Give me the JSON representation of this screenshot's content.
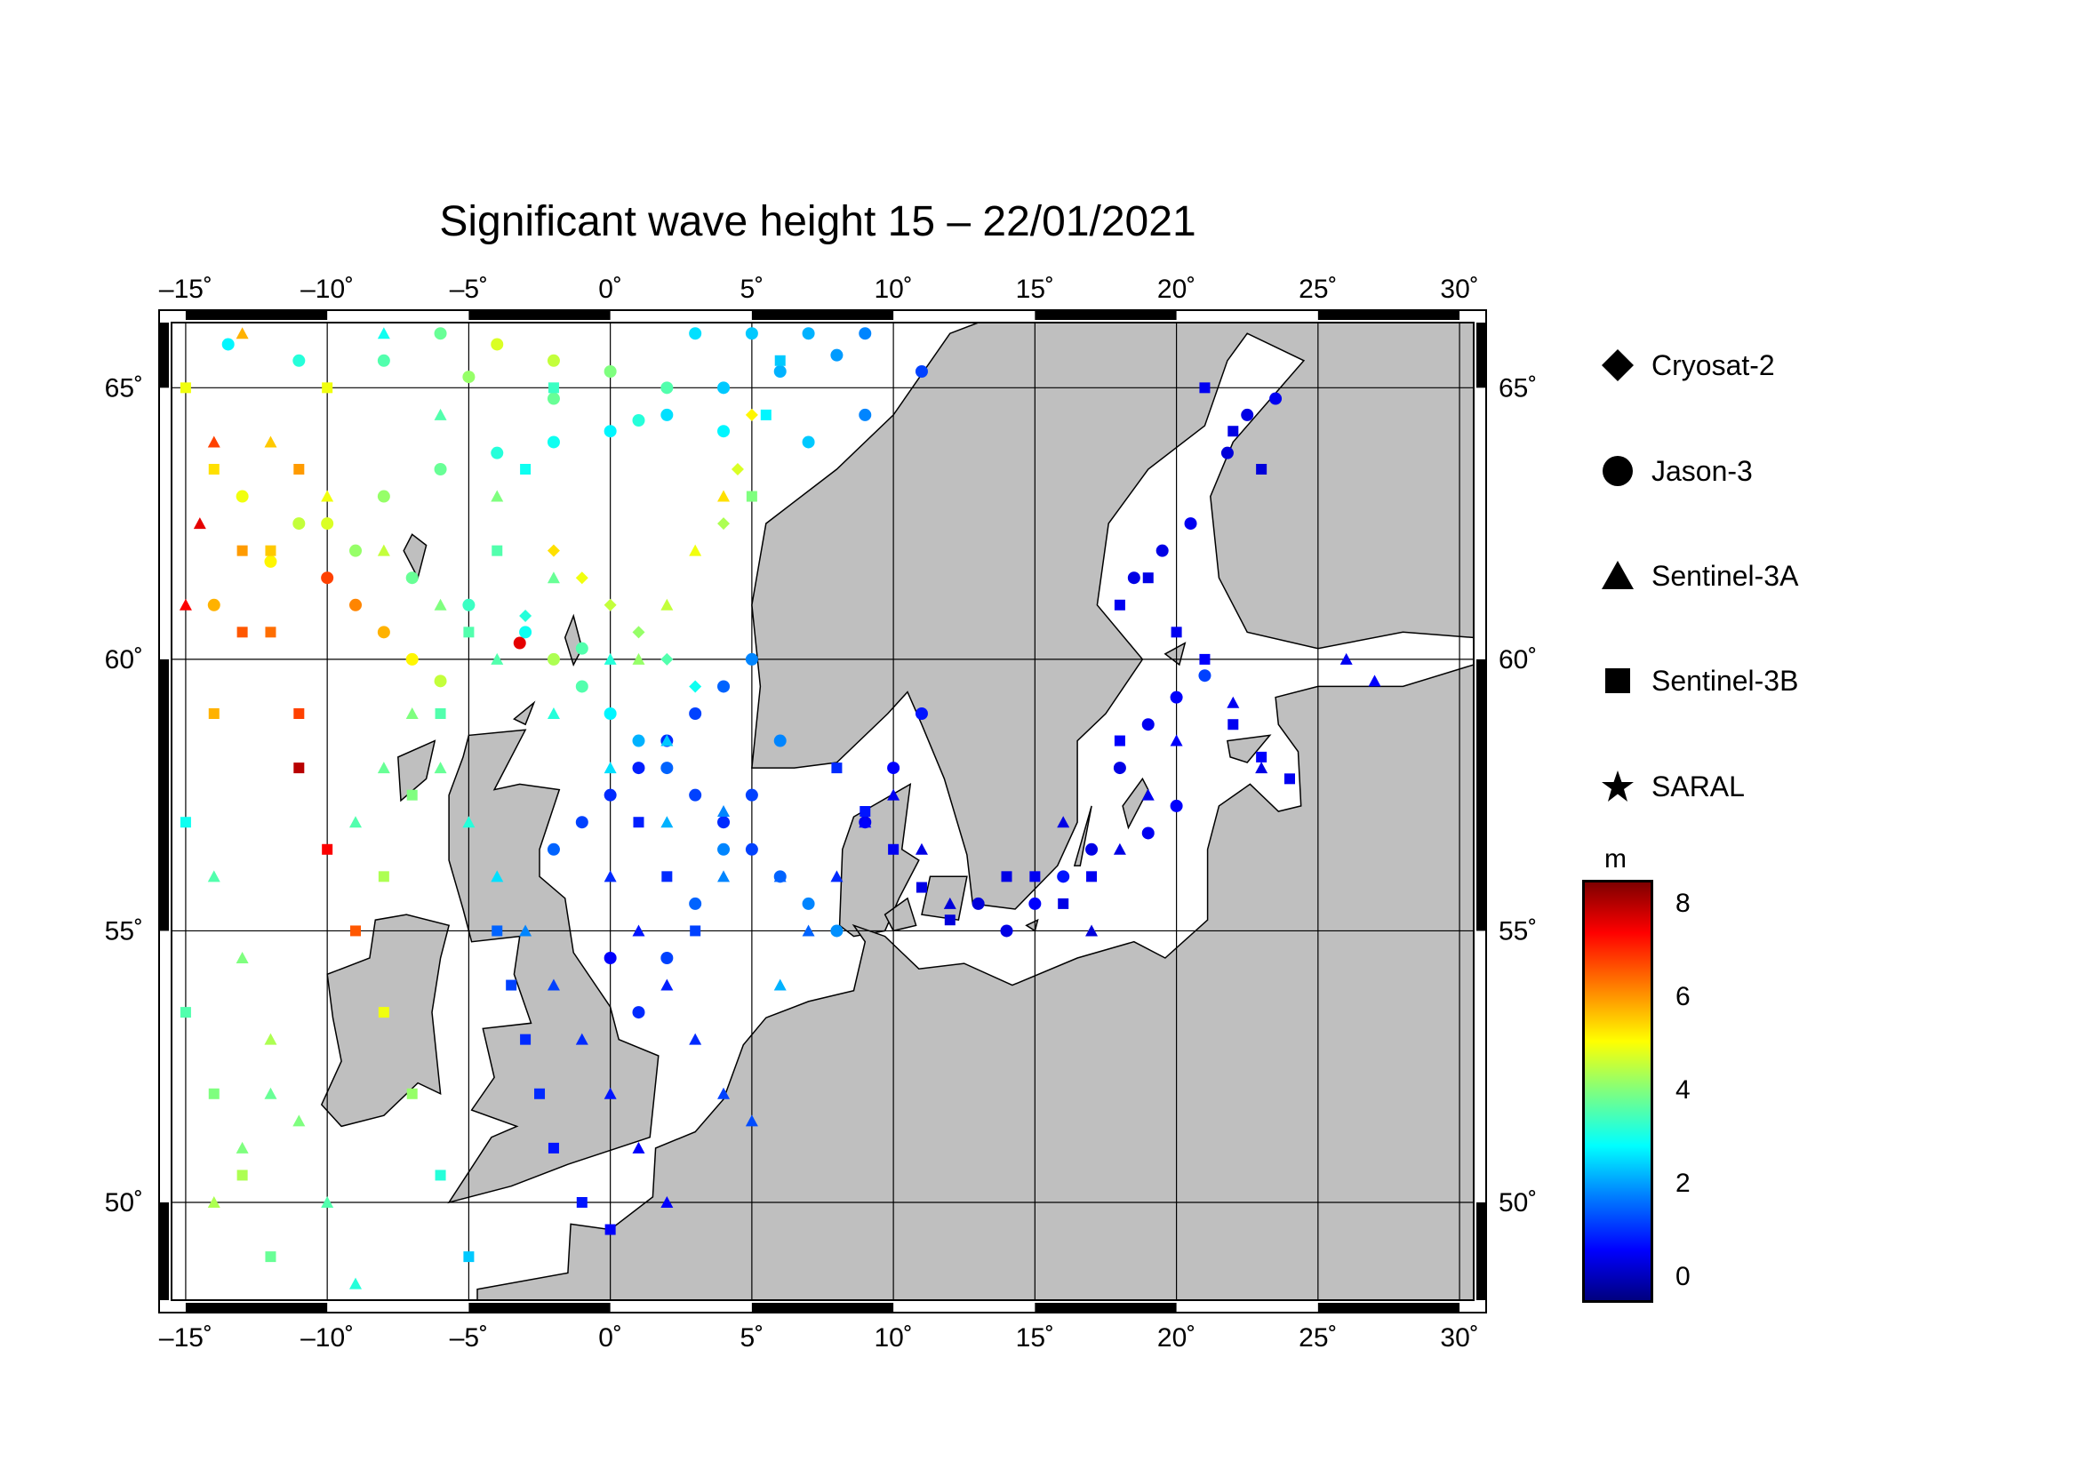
{
  "title": "Significant wave height 15 – 22/01/2021",
  "axes": {
    "lon_ticks": [
      "–15˚",
      "–10˚",
      "–5˚",
      "0˚",
      "5˚",
      "10˚",
      "15˚",
      "20˚",
      "25˚",
      "30˚"
    ],
    "lat_ticks": [
      "65˚",
      "60˚",
      "55˚",
      "50˚"
    ]
  },
  "legend": {
    "items": [
      {
        "label": "Cryosat-2",
        "symbol": "diamond"
      },
      {
        "label": "Jason-3",
        "symbol": "circle"
      },
      {
        "label": "Sentinel-3A",
        "symbol": "triangle"
      },
      {
        "label": "Sentinel-3B",
        "symbol": "square"
      },
      {
        "label": "SARAL",
        "symbol": "star"
      }
    ]
  },
  "colorbar": {
    "unit": "m",
    "ticks": [
      "8",
      "6",
      "4",
      "2",
      "0"
    ],
    "range": [
      -0.5,
      8.5
    ],
    "colormap": [
      "#00007f",
      "#0000ff",
      "#007fff",
      "#00ffff",
      "#7fff7f",
      "#ffff00",
      "#ff7f00",
      "#ff0000",
      "#7f0000"
    ]
  },
  "map": {
    "lon_range": [
      -15.5,
      30.5
    ],
    "lat_range": [
      48.2,
      66.2
    ],
    "land_color": "#bfbfbf",
    "sea_color": "#ffffff"
  },
  "chart_data": {
    "type": "scatter",
    "title": "Significant wave height 15 – 22/01/2021",
    "xlabel": "",
    "ylabel": "",
    "xlim": [
      -15.5,
      30.5
    ],
    "ylim": [
      48.2,
      66.2
    ],
    "color_scale_unit": "m",
    "tracks": [
      {
        "name": "Jason-3",
        "marker": "circle",
        "points": [
          [
            -3.2,
            60.3,
            7.6
          ],
          [
            -2,
            60,
            4.4
          ],
          [
            -1,
            59.5,
            3.6
          ],
          [
            0,
            59,
            2.8
          ],
          [
            1,
            58.5,
            2.2
          ],
          [
            2,
            58,
            1.5
          ],
          [
            3,
            57.5,
            1.2
          ],
          [
            4,
            57,
            1.0
          ],
          [
            5,
            56.5,
            1.2
          ],
          [
            6,
            56,
            1.5
          ],
          [
            7,
            55.5,
            1.8
          ],
          [
            8,
            55,
            1.9
          ],
          [
            -10,
            61.5,
            6.8
          ],
          [
            -9,
            61,
            6.2
          ],
          [
            -8,
            60.5,
            5.8
          ],
          [
            -7,
            60,
            5.2
          ],
          [
            -6,
            59.6,
            4.6
          ],
          [
            -2,
            56.5,
            1.5
          ],
          [
            -1,
            57,
            1.2
          ],
          [
            0,
            57.5,
            1.0
          ],
          [
            1,
            58,
            0.9
          ],
          [
            2,
            58.5,
            1.0
          ],
          [
            3,
            59,
            1.2
          ],
          [
            4,
            59.5,
            1.5
          ],
          [
            5,
            60,
            1.8
          ],
          [
            1,
            53.5,
            1.0
          ],
          [
            2,
            54.5,
            1.2
          ],
          [
            3,
            55.5,
            1.5
          ],
          [
            4,
            56.5,
            1.8
          ],
          [
            5,
            57.5,
            1.2
          ],
          [
            6,
            58.5,
            1.8
          ],
          [
            0,
            54.5,
            0.6
          ],
          [
            9,
            57,
            0.5
          ],
          [
            10,
            58,
            0.6
          ],
          [
            11,
            59,
            0.8
          ],
          [
            17,
            56.5,
            0.4
          ],
          [
            18,
            58,
            0.4
          ],
          [
            19,
            58.8,
            0.5
          ],
          [
            20,
            59.3,
            0.6
          ],
          [
            21,
            59.7,
            1.2
          ],
          [
            19,
            56.8,
            0.5
          ],
          [
            20,
            57.3,
            0.6
          ],
          [
            18.5,
            61.5,
            0.4
          ],
          [
            19.5,
            62,
            0.4
          ],
          [
            20.5,
            62.5,
            0.5
          ],
          [
            21.8,
            63.8,
            0.3
          ],
          [
            22.5,
            64.5,
            0.4
          ],
          [
            23.5,
            64.8,
            0.5
          ],
          [
            13,
            55.5,
            0.3
          ],
          [
            14,
            55,
            0.4
          ],
          [
            15,
            55.5,
            0.6
          ],
          [
            16,
            56,
            0.8
          ],
          [
            -13.5,
            65.8,
            2.8
          ],
          [
            -11,
            65.5,
            3.2
          ],
          [
            -8,
            65.5,
            3.6
          ],
          [
            -5,
            65.2,
            4.2
          ],
          [
            -2,
            64.8,
            3.8
          ],
          [
            1,
            64.4,
            3.2
          ],
          [
            4,
            64.2,
            2.8
          ],
          [
            7,
            64,
            2.4
          ],
          [
            9,
            64.5,
            1.8
          ],
          [
            11,
            65.3,
            1.2
          ],
          [
            -14,
            61,
            5.8
          ],
          [
            -12,
            61.8,
            5.2
          ],
          [
            -10,
            62.5,
            4.8
          ],
          [
            -8,
            63,
            4.2
          ],
          [
            -6,
            63.5,
            3.8
          ],
          [
            -4,
            63.8,
            3.2
          ],
          [
            -2,
            64,
            3.0
          ],
          [
            0,
            64.2,
            2.8
          ],
          [
            2,
            64.5,
            2.6
          ],
          [
            4,
            65,
            2.4
          ],
          [
            6,
            65.3,
            2.2
          ],
          [
            8,
            65.6,
            2.0
          ],
          [
            -6,
            66,
            3.8
          ],
          [
            -4,
            65.8,
            4.8
          ],
          [
            -2,
            65.5,
            4.6
          ],
          [
            0,
            65.3,
            4.0
          ],
          [
            2,
            65,
            3.6
          ],
          [
            3,
            66,
            2.6
          ],
          [
            5,
            66,
            2.4
          ],
          [
            7,
            66,
            2.2
          ],
          [
            9,
            66,
            1.8
          ],
          [
            -13,
            63,
            5.0
          ],
          [
            -11,
            62.5,
            4.6
          ],
          [
            -9,
            62,
            4.2
          ],
          [
            -7,
            61.5,
            3.8
          ],
          [
            -5,
            61,
            3.4
          ],
          [
            -3,
            60.5,
            3.0
          ],
          [
            -1,
            60.2,
            3.6
          ]
        ]
      },
      {
        "name": "Sentinel-3A",
        "marker": "triangle",
        "points": [
          [
            -15,
            61,
            7.4
          ],
          [
            -14.5,
            62.5,
            7.6
          ],
          [
            -14,
            64,
            6.8
          ],
          [
            -13,
            66,
            5.8
          ],
          [
            -14,
            56,
            3.6
          ],
          [
            -13,
            54.5,
            4.0
          ],
          [
            -12,
            53,
            4.4
          ],
          [
            -11,
            51.5,
            4.0
          ],
          [
            -10,
            50,
            3.6
          ],
          [
            -9,
            48.5,
            3.2
          ],
          [
            -6,
            58,
            3.8
          ],
          [
            -5,
            57,
            3.2
          ],
          [
            -4,
            56,
            2.6
          ],
          [
            -3,
            55,
            1.8
          ],
          [
            -2,
            54,
            1.2
          ],
          [
            -1,
            53,
            1.0
          ],
          [
            0,
            52,
            0.8
          ],
          [
            1,
            51,
            0.6
          ],
          [
            2,
            50,
            0.6
          ],
          [
            0,
            56,
            1.0
          ],
          [
            1,
            55,
            0.8
          ],
          [
            2,
            54,
            0.9
          ],
          [
            3,
            53,
            1.0
          ],
          [
            4,
            52,
            1.2
          ],
          [
            5,
            51.5,
            1.3
          ],
          [
            6,
            54,
            2.2
          ],
          [
            7,
            55,
            1.5
          ],
          [
            8,
            56,
            1.0
          ],
          [
            9,
            57,
            0.6
          ],
          [
            10,
            57.5,
            0.5
          ],
          [
            11,
            56.5,
            0.4
          ],
          [
            12,
            55.5,
            0.3
          ],
          [
            16,
            57,
            0.4
          ],
          [
            17,
            55,
            0.3
          ],
          [
            18,
            56.5,
            0.4
          ],
          [
            19,
            57.5,
            0.5
          ],
          [
            20,
            58.5,
            0.6
          ],
          [
            22,
            59.2,
            0.5
          ],
          [
            23,
            58,
            0.4
          ],
          [
            26,
            60,
            0.5
          ],
          [
            27,
            59.6,
            0.6
          ],
          [
            -12,
            64,
            5.6
          ],
          [
            -10,
            63,
            5.0
          ],
          [
            -8,
            62,
            4.6
          ],
          [
            -6,
            61,
            4.0
          ],
          [
            -4,
            60,
            3.6
          ],
          [
            -2,
            59,
            3.2
          ],
          [
            0,
            58,
            2.6
          ],
          [
            2,
            57,
            2.2
          ],
          [
            4,
            56,
            1.8
          ],
          [
            -8,
            66,
            3.0
          ],
          [
            -6,
            64.5,
            3.6
          ],
          [
            -4,
            63,
            4.0
          ],
          [
            -2,
            61.5,
            3.8
          ],
          [
            0,
            60,
            3.2
          ],
          [
            2,
            58.5,
            2.4
          ],
          [
            4,
            57.2,
            1.8
          ],
          [
            6,
            56,
            1.5
          ],
          [
            4,
            63,
            5.4
          ],
          [
            3,
            62,
            5.0
          ],
          [
            2,
            61,
            4.6
          ],
          [
            1,
            60,
            4.2
          ],
          [
            -14,
            50,
            4.4
          ],
          [
            -13,
            51,
            4.0
          ],
          [
            -12,
            52,
            3.8
          ],
          [
            -9,
            57,
            3.6
          ],
          [
            -8,
            58,
            3.8
          ],
          [
            -7,
            59,
            4.0
          ]
        ]
      },
      {
        "name": "Sentinel-3B",
        "marker": "square",
        "points": [
          [
            -15,
            57,
            3.0
          ],
          [
            -14,
            59,
            5.8
          ],
          [
            -13,
            60.5,
            6.6
          ],
          [
            -12,
            62,
            5.6
          ],
          [
            -11,
            63.5,
            6.0
          ],
          [
            -10,
            65,
            5.0
          ],
          [
            -11,
            58,
            8.0
          ],
          [
            -10,
            56.5,
            7.4
          ],
          [
            -9,
            55,
            6.6
          ],
          [
            -8,
            53.5,
            5.0
          ],
          [
            -7,
            52,
            4.2
          ],
          [
            -6,
            50.5,
            3.2
          ],
          [
            -5,
            49,
            2.4
          ],
          [
            -4,
            55,
            1.5
          ],
          [
            -3.5,
            54,
            1.2
          ],
          [
            -3,
            53,
            1.0
          ],
          [
            -2.5,
            52,
            1.0
          ],
          [
            -2,
            51,
            0.8
          ],
          [
            -1,
            50,
            0.8
          ],
          [
            0,
            49.5,
            0.6
          ],
          [
            1,
            57,
            0.9
          ],
          [
            2,
            56,
            1.0
          ],
          [
            3,
            55,
            1.2
          ],
          [
            8,
            58,
            1.0
          ],
          [
            9,
            57.2,
            0.8
          ],
          [
            10,
            56.5,
            0.5
          ],
          [
            11,
            55.8,
            0.4
          ],
          [
            12,
            55.2,
            0.3
          ],
          [
            14,
            56,
            0.4
          ],
          [
            15,
            56,
            0.5
          ],
          [
            16,
            55.5,
            0.4
          ],
          [
            17,
            56,
            0.5
          ],
          [
            18,
            58.5,
            0.6
          ],
          [
            18,
            61,
            0.5
          ],
          [
            19,
            61.5,
            0.4
          ],
          [
            20,
            60.5,
            0.5
          ],
          [
            21,
            60,
            0.6
          ],
          [
            22,
            58.8,
            0.5
          ],
          [
            23,
            58.2,
            0.6
          ],
          [
            24,
            57.8,
            0.5
          ],
          [
            21,
            65,
            0.5
          ],
          [
            22,
            64.2,
            0.4
          ],
          [
            23,
            63.5,
            0.3
          ],
          [
            -12,
            49,
            3.8
          ],
          [
            -13,
            50.5,
            4.4
          ],
          [
            -14,
            52,
            4.0
          ],
          [
            -15,
            53.5,
            3.6
          ],
          [
            -8,
            56,
            4.4
          ],
          [
            -7,
            57.5,
            4.0
          ],
          [
            -6,
            59,
            3.6
          ],
          [
            -5,
            60.5,
            3.6
          ],
          [
            -4,
            62,
            3.6
          ],
          [
            -3,
            63.5,
            3.0
          ],
          [
            -2,
            65,
            3.4
          ],
          [
            5,
            63,
            4.0
          ],
          [
            5.5,
            64.5,
            2.8
          ],
          [
            6,
            65.5,
            2.4
          ],
          [
            -15,
            65,
            5.0
          ],
          [
            -14,
            63.5,
            5.4
          ],
          [
            -13,
            62,
            6.0
          ],
          [
            -12,
            60.5,
            6.4
          ],
          [
            -11,
            59,
            6.8
          ]
        ]
      },
      {
        "name": "Cryosat-2",
        "marker": "diamond",
        "points": [
          [
            -2,
            62,
            5.4
          ],
          [
            -1,
            61.5,
            5.0
          ],
          [
            0,
            61,
            4.6
          ],
          [
            1,
            60.5,
            4.2
          ],
          [
            2,
            60,
            3.6
          ],
          [
            3,
            59.5,
            3.0
          ],
          [
            4,
            62.5,
            4.4
          ],
          [
            4.5,
            63.5,
            4.8
          ],
          [
            5,
            64.5,
            5.2
          ],
          [
            -3,
            60.8,
            3.2
          ]
        ]
      }
    ]
  }
}
